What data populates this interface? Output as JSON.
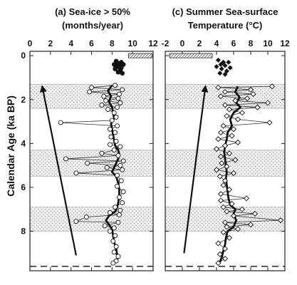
{
  "y_axis_label": "Calendar Age (ka BP)",
  "chart_data": [
    {
      "type": "scatter",
      "title_line1": "(a) Sea-ice > 50%",
      "title_line2": "(months/year)",
      "x_ticks": [
        "0",
        "2",
        "4",
        "6",
        "8",
        "10",
        "12"
      ],
      "y_ticks": [
        "0",
        "2",
        "4",
        "6",
        "8"
      ],
      "xlim": [
        0,
        12
      ],
      "ylim": [
        9.8,
        -0.2
      ],
      "shaded_intervals_ka": [
        [
          1.3,
          2.4
        ],
        [
          4.3,
          5.5
        ],
        [
          6.9,
          8.0
        ]
      ],
      "modern_range": [
        9.6,
        11.9
      ],
      "modern_points": [
        [
          8.4,
          0.25
        ],
        [
          8.9,
          0.3
        ],
        [
          8.6,
          0.35
        ],
        [
          8.2,
          0.4
        ],
        [
          9.1,
          0.4
        ],
        [
          8.7,
          0.45
        ],
        [
          8.5,
          0.5
        ],
        [
          8.9,
          0.55
        ],
        [
          8.3,
          0.6
        ],
        [
          8.8,
          0.65
        ],
        [
          8.6,
          0.75
        ],
        [
          9.0,
          0.8
        ]
      ],
      "series": [
        {
          "values": [
            [
              8.3,
              1.35
            ],
            [
              6.0,
              1.45
            ],
            [
              9.0,
              1.55
            ],
            [
              5.8,
              1.65
            ],
            [
              8.7,
              1.75
            ],
            [
              7.2,
              1.85
            ],
            [
              8.6,
              1.95
            ],
            [
              7.4,
              2.05
            ],
            [
              8.8,
              2.15
            ],
            [
              7.0,
              2.25
            ],
            [
              8.5,
              2.35
            ],
            [
              7.6,
              2.45
            ],
            [
              8.2,
              2.6
            ],
            [
              8.4,
              2.8
            ],
            [
              8.0,
              2.95
            ],
            [
              3.0,
              3.05
            ],
            [
              8.5,
              3.2
            ],
            [
              7.8,
              3.35
            ],
            [
              8.3,
              3.5
            ],
            [
              7.9,
              3.7
            ],
            [
              8.4,
              3.9
            ],
            [
              7.8,
              4.05
            ],
            [
              8.8,
              4.15
            ],
            [
              8.2,
              4.3
            ],
            [
              7.0,
              4.45
            ],
            [
              8.6,
              4.55
            ],
            [
              3.5,
              4.7
            ],
            [
              9.1,
              4.8
            ],
            [
              5.6,
              4.9
            ],
            [
              8.8,
              5.0
            ],
            [
              7.5,
              5.1
            ],
            [
              9.0,
              5.2
            ],
            [
              4.5,
              5.35
            ],
            [
              8.5,
              5.45
            ],
            [
              8.9,
              5.7
            ],
            [
              8.5,
              5.95
            ],
            [
              9.1,
              6.2
            ],
            [
              8.7,
              6.45
            ],
            [
              9.0,
              6.7
            ],
            [
              8.3,
              6.9
            ],
            [
              8.8,
              7.05
            ],
            [
              7.8,
              7.15
            ],
            [
              8.7,
              7.25
            ],
            [
              5.5,
              7.35
            ],
            [
              4.5,
              7.55
            ],
            [
              8.6,
              7.6
            ],
            [
              7.3,
              7.75
            ],
            [
              8.2,
              7.85
            ],
            [
              7.8,
              8.0
            ],
            [
              8.3,
              8.2
            ],
            [
              8.1,
              8.45
            ],
            [
              8.4,
              8.7
            ],
            [
              8.2,
              8.95
            ],
            [
              8.6,
              9.15
            ],
            [
              8.4,
              9.35
            ],
            [
              8.1,
              9.45
            ]
          ]
        },
        {
          "values": [
            [
              8.0,
              1.35
            ],
            [
              7.6,
              1.6
            ],
            [
              7.9,
              1.85
            ],
            [
              7.7,
              2.1
            ],
            [
              8.0,
              2.35
            ],
            [
              8.1,
              2.6
            ],
            [
              8.2,
              2.85
            ],
            [
              7.9,
              3.1
            ],
            [
              8.0,
              3.35
            ],
            [
              8.1,
              3.6
            ],
            [
              8.2,
              3.85
            ],
            [
              8.3,
              4.1
            ],
            [
              8.6,
              4.3
            ],
            [
              8.7,
              4.5
            ],
            [
              8.6,
              4.7
            ],
            [
              8.4,
              4.9
            ],
            [
              8.2,
              5.1
            ],
            [
              8.0,
              5.3
            ],
            [
              8.4,
              5.5
            ],
            [
              8.6,
              5.8
            ],
            [
              8.7,
              6.1
            ],
            [
              8.7,
              6.4
            ],
            [
              8.6,
              6.7
            ],
            [
              8.5,
              6.9
            ],
            [
              8.3,
              7.1
            ],
            [
              7.7,
              7.3
            ],
            [
              7.4,
              7.5
            ],
            [
              7.7,
              7.7
            ],
            [
              8.0,
              7.9
            ],
            [
              8.1,
              8.2
            ],
            [
              8.2,
              8.5
            ],
            [
              8.4,
              8.8
            ],
            [
              8.5,
              9.1
            ],
            [
              8.5,
              9.4
            ]
          ]
        }
      ],
      "trend_arrow": [
        [
          4.5,
          9.1
        ],
        [
          1.2,
          1.4
        ]
      ],
      "dashed_line_y": 9.6
    },
    {
      "type": "scatter",
      "title_line1": "(c) Summer Sea-surface",
      "title_line2": "Temperature (°C)",
      "x_ticks": [
        "-2",
        "0",
        "2",
        "4",
        "6",
        "8",
        "10",
        "12"
      ],
      "y_ticks": [
        "0",
        "2",
        "4",
        "6",
        "8"
      ],
      "xlim": [
        -2,
        12
      ],
      "ylim": [
        9.8,
        -0.2
      ],
      "shaded_intervals_ka": [
        [
          1.3,
          2.4
        ],
        [
          4.3,
          5.5
        ],
        [
          6.9,
          8.0
        ]
      ],
      "modern_range": [
        -1.5,
        3.5
      ],
      "modern_points": [
        [
          4.2,
          0.2
        ],
        [
          4.8,
          0.3
        ],
        [
          5.4,
          0.3
        ],
        [
          4.5,
          0.4
        ],
        [
          5.0,
          0.45
        ],
        [
          4.0,
          0.5
        ],
        [
          5.6,
          0.55
        ],
        [
          4.6,
          0.6
        ],
        [
          5.2,
          0.7
        ],
        [
          4.4,
          0.8
        ],
        [
          5.0,
          0.85
        ]
      ],
      "series": [
        {
          "values": [
            [
              10.5,
              1.4
            ],
            [
              4.2,
              1.45
            ],
            [
              8.0,
              1.55
            ],
            [
              5.0,
              1.65
            ],
            [
              8.3,
              1.75
            ],
            [
              4.5,
              1.85
            ],
            [
              7.6,
              1.95
            ],
            [
              6.2,
              2.05
            ],
            [
              10.0,
              2.15
            ],
            [
              5.0,
              2.25
            ],
            [
              8.8,
              2.35
            ],
            [
              5.5,
              2.45
            ],
            [
              7.0,
              2.6
            ],
            [
              5.2,
              2.75
            ],
            [
              6.5,
              2.9
            ],
            [
              10.2,
              3.05
            ],
            [
              4.8,
              3.2
            ],
            [
              6.0,
              3.35
            ],
            [
              4.5,
              3.5
            ],
            [
              5.8,
              3.65
            ],
            [
              4.2,
              3.8
            ],
            [
              6.5,
              3.95
            ],
            [
              5.0,
              4.1
            ],
            [
              4.0,
              4.25
            ],
            [
              5.5,
              4.45
            ],
            [
              4.5,
              4.6
            ],
            [
              6.2,
              4.75
            ],
            [
              4.6,
              4.9
            ],
            [
              5.2,
              5.05
            ],
            [
              4.0,
              5.2
            ],
            [
              6.0,
              5.35
            ],
            [
              4.4,
              5.5
            ],
            [
              5.0,
              5.7
            ],
            [
              4.8,
              5.9
            ],
            [
              5.5,
              6.1
            ],
            [
              4.5,
              6.3
            ],
            [
              7.5,
              6.5
            ],
            [
              4.5,
              6.6
            ],
            [
              5.8,
              6.75
            ],
            [
              4.8,
              6.9
            ],
            [
              7.0,
              7.0
            ],
            [
              5.2,
              7.1
            ],
            [
              8.5,
              7.2
            ],
            [
              6.0,
              7.3
            ],
            [
              11.5,
              7.5
            ],
            [
              5.0,
              7.6
            ],
            [
              8.0,
              7.7
            ],
            [
              5.2,
              7.8
            ],
            [
              6.5,
              7.9
            ],
            [
              4.8,
              8.05
            ],
            [
              5.5,
              8.3
            ],
            [
              4.2,
              8.55
            ],
            [
              5.0,
              8.8
            ],
            [
              4.4,
              9.05
            ],
            [
              5.0,
              9.25
            ],
            [
              4.2,
              9.45
            ]
          ]
        },
        {
          "values": [
            [
              6.5,
              1.4
            ],
            [
              6.2,
              1.65
            ],
            [
              6.7,
              1.9
            ],
            [
              6.3,
              2.15
            ],
            [
              6.8,
              2.35
            ],
            [
              6.0,
              2.6
            ],
            [
              5.6,
              2.9
            ],
            [
              5.8,
              3.2
            ],
            [
              5.3,
              3.5
            ],
            [
              5.2,
              3.8
            ],
            [
              5.0,
              4.1
            ],
            [
              4.9,
              4.4
            ],
            [
              5.0,
              4.7
            ],
            [
              5.1,
              5.0
            ],
            [
              5.2,
              5.3
            ],
            [
              5.1,
              5.6
            ],
            [
              5.2,
              5.9
            ],
            [
              5.3,
              6.2
            ],
            [
              5.4,
              6.5
            ],
            [
              5.6,
              6.8
            ],
            [
              6.2,
              7.0
            ],
            [
              6.0,
              7.2
            ],
            [
              6.3,
              7.5
            ],
            [
              6.0,
              7.8
            ],
            [
              5.3,
              8.0
            ],
            [
              5.1,
              8.3
            ],
            [
              5.0,
              8.6
            ],
            [
              4.8,
              8.9
            ],
            [
              4.6,
              9.2
            ],
            [
              4.4,
              9.4
            ]
          ]
        }
      ],
      "trend_arrow": [
        [
          0.2,
          9.0
        ],
        [
          2.7,
          1.4
        ]
      ],
      "dashed_line_y": 9.6
    }
  ]
}
